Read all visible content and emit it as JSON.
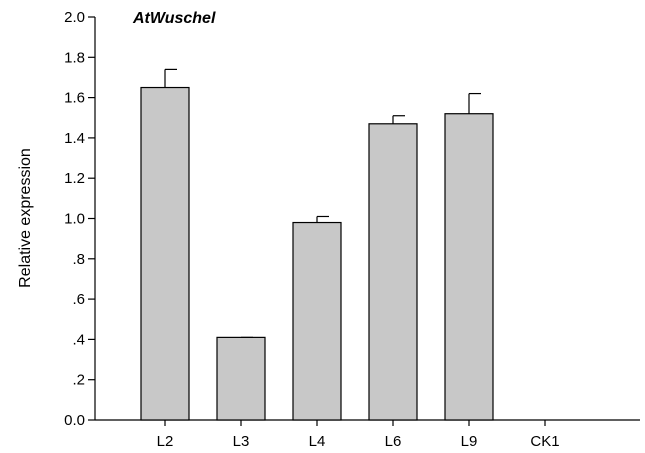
{
  "chart_data": {
    "type": "bar",
    "title": "AtWuschel",
    "xlabel": "",
    "ylabel": "Relative expression",
    "categories": [
      "L2",
      "L3",
      "L4",
      "L6",
      "L9",
      "CK1"
    ],
    "values": [
      1.65,
      0.41,
      0.98,
      1.47,
      1.52,
      0
    ],
    "error_plus": [
      0.09,
      0.0,
      0.03,
      0.04,
      0.1,
      0
    ],
    "ylim": [
      0,
      2.0
    ],
    "yticks": [
      0,
      0.2,
      0.4,
      0.6,
      0.8,
      1.0,
      1.2,
      1.4,
      1.6,
      1.8,
      2.0
    ],
    "ytick_labels": [
      "0.0",
      ".2",
      ".4",
      ".6",
      ".8",
      "1.0",
      "1.2",
      "1.4",
      "1.6",
      "1.8",
      "2.0"
    ],
    "grid": false,
    "bar_color": "#c8c8c8",
    "edge_color": "#000000"
  }
}
